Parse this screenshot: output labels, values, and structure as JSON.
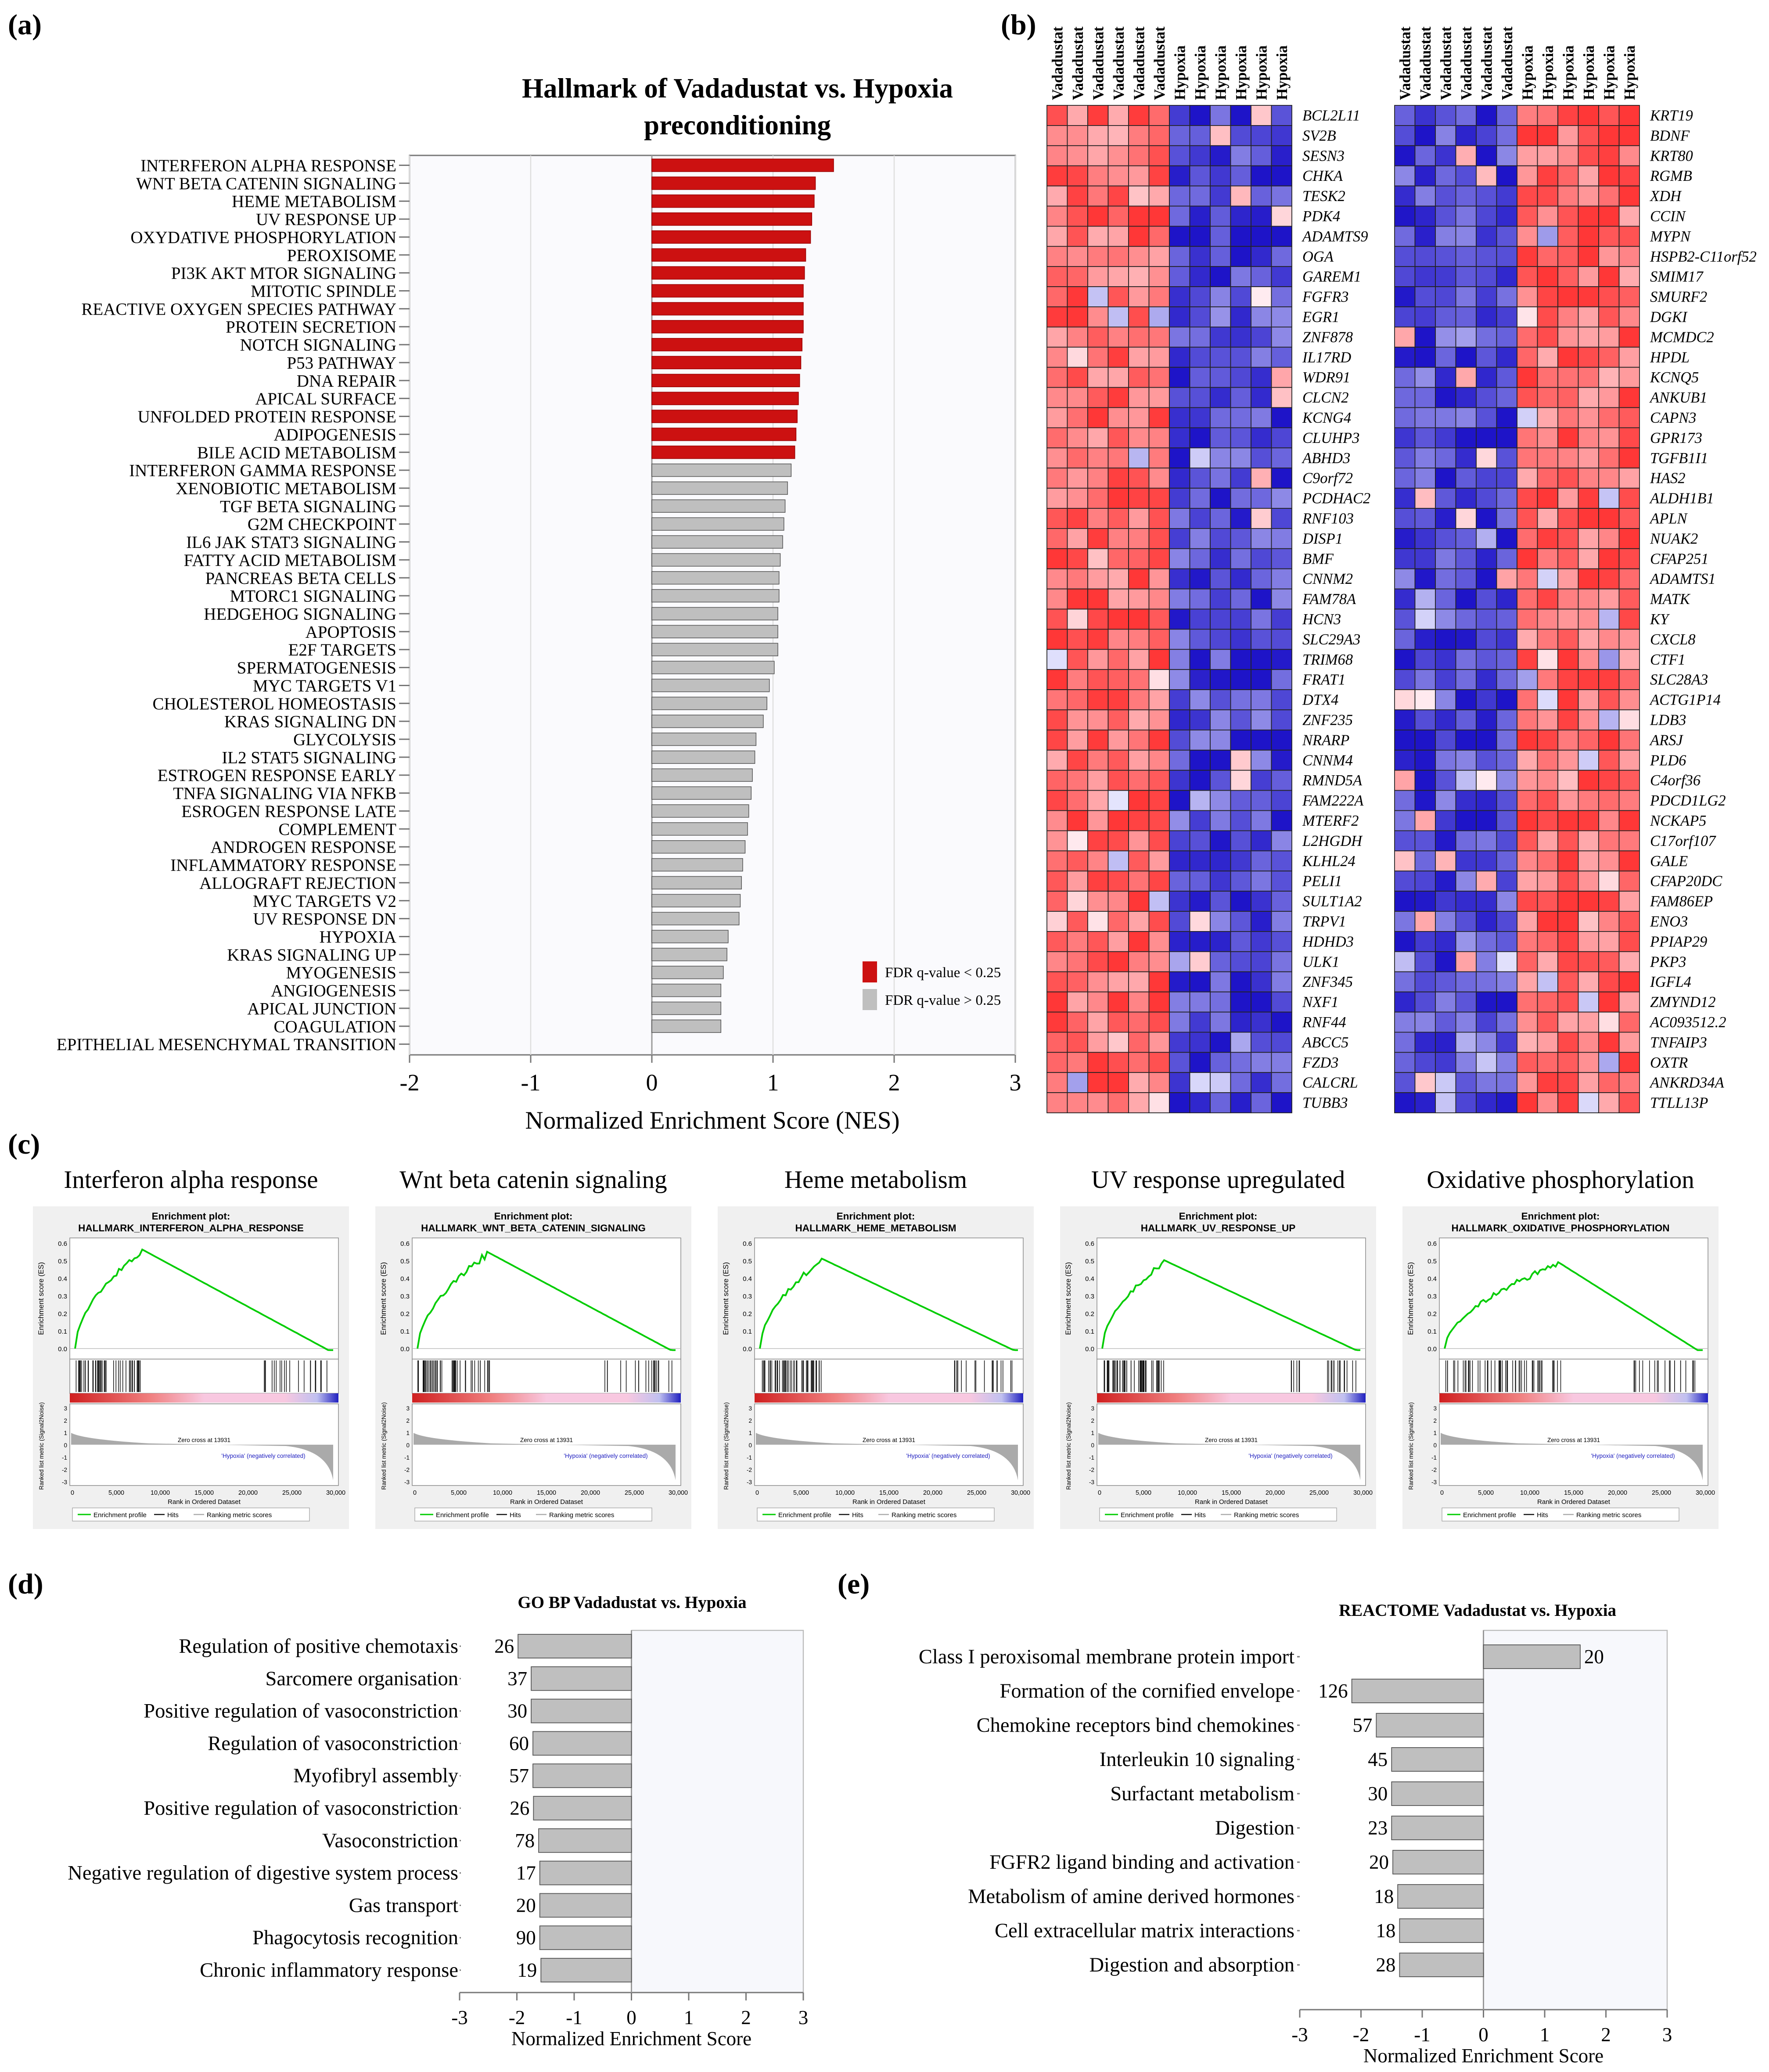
{
  "panel_labels": {
    "a": "(a)",
    "b": "(b)",
    "c": "(c)",
    "d": "(d)",
    "e": "(e)"
  },
  "colors": {
    "red": "#cc1111",
    "gray": "#bfbfbf",
    "bar_stroke": "#555555",
    "axis": "#777777",
    "grid": "#dddddd",
    "plot_bg": "#f7f8fc",
    "green": "#00cc00",
    "heat_red": "#ff3333",
    "heat_blue": "#1f1fd0"
  },
  "chart_data": [
    {
      "id": "hallmark",
      "type": "bar",
      "orientation": "horizontal",
      "title": "Hallmark of Vadadustat vs. Hypoxia preconditioning",
      "title_line1": "Hallmark of Vadadustat vs. Hypoxia",
      "title_line2": "preconditioning",
      "xlabel": "Normalized Enrichment Score (NES)",
      "xlim": [
        -2,
        3
      ],
      "xticks": [
        "-2",
        "-1",
        "0",
        "1",
        "2",
        "3"
      ],
      "legend": [
        {
          "label": "FDR q-value < 0.25",
          "color": "red"
        },
        {
          "label": "FDR q-value > 0.25",
          "color": "gray"
        }
      ],
      "legend_position": "bottom-right",
      "categories": [
        "INTERFERON ALPHA RESPONSE",
        "WNT BETA CATENIN SIGNALING",
        "HEME METABOLISM",
        "UV RESPONSE UP",
        "OXYDATIVE PHOSPHORYLATION",
        "PEROXISOME",
        "PI3K AKT MTOR SIGNALING",
        "MITOTIC SPINDLE",
        "REACTIVE OXYGEN SPECIES PATHWAY",
        "PROTEIN SECRETION",
        "NOTCH SIGNALING",
        "P53 PATHWAY",
        "DNA REPAIR",
        "APICAL SURFACE",
        "UNFOLDED PROTEIN RESPONSE",
        "ADIPOGENESIS",
        "BILE ACID METABOLISM",
        "INTERFERON GAMMA RESPONSE",
        "XENOBIOTIC METABOLISM",
        "TGF BETA SIGNALING",
        "G2M CHECKPOINT",
        "IL6 JAK STAT3 SIGNALING",
        "FATTY ACID METABOLISM",
        "PANCREAS BETA CELLS",
        "MTORC1 SIGNALING",
        "HEDGEHOG SIGNALING",
        "APOPTOSIS",
        "E2F TARGETS",
        "SPERMATOGENESIS",
        "MYC TARGETS V1",
        "CHOLESTEROL HOMEOSTASIS",
        "KRAS SIGNALING DN",
        "GLYCOLYSIS",
        "IL2 STAT5 SIGNALING",
        "ESTROGEN RESPONSE EARLY",
        "TNFA SIGNALING VIA NFKB",
        "ESROGEN RESPONSE LATE",
        "COMPLEMENT",
        "ANDROGEN RESPONSE",
        "INFLAMMATORY RESPONSE",
        "ALLOGRAFT REJECTION",
        "MYC TARGETS V2",
        "UV RESPONSE DN",
        "HYPOXIA",
        "KRAS SIGNALING UP",
        "MYOGENESIS",
        "ANGIOGENESIS",
        "APICAL JUNCTION",
        "COAGULATION",
        "EPITHELIAL MESENCHYMAL TRANSITION"
      ],
      "values": [
        1.5,
        1.35,
        1.34,
        1.32,
        1.31,
        1.27,
        1.26,
        1.25,
        1.25,
        1.25,
        1.24,
        1.23,
        1.22,
        1.21,
        1.2,
        1.19,
        1.18,
        1.15,
        1.12,
        1.1,
        1.09,
        1.08,
        1.06,
        1.05,
        1.05,
        1.04,
        1.04,
        1.04,
        1.01,
        0.97,
        0.95,
        0.92,
        0.86,
        0.85,
        0.83,
        0.82,
        0.8,
        0.79,
        0.77,
        0.75,
        0.74,
        0.73,
        0.72,
        0.63,
        0.62,
        0.59,
        0.57,
        0.57,
        0.57,
        null
      ],
      "significant_count": 17
    },
    {
      "id": "gobp",
      "type": "bar",
      "orientation": "horizontal",
      "title": "GO BP Vadadustat vs. Hypoxia",
      "xlabel": "Normalized Enrichment Score",
      "xlim": [
        -3,
        3
      ],
      "xticks": [
        "-3",
        "-2",
        "-1",
        "0",
        "1",
        "2",
        "3"
      ],
      "categories": [
        "Regulation of positive chemotaxis",
        "Sarcomere organisation",
        "Positive regulation of vasoconstriction",
        "Regulation of vasoconstriction",
        "Myofibryl assembly",
        "Positive regulation of vasoconstriction",
        "Vasoconstriction",
        "Negative regulation of digestive system process",
        "Gas transport",
        "Phagocytosis recognition",
        "Chronic inflammatory response"
      ],
      "values": [
        -1.98,
        -1.75,
        -1.75,
        -1.72,
        -1.72,
        -1.71,
        -1.62,
        -1.6,
        -1.6,
        -1.6,
        -1.58
      ],
      "sizes": [
        "26",
        "37",
        "30",
        "60",
        "57",
        "26",
        "78",
        "17",
        "20",
        "90",
        "19"
      ]
    },
    {
      "id": "reactome",
      "type": "bar",
      "orientation": "horizontal",
      "title": "REACTOME Vadadustat vs. Hypoxia",
      "xlabel": "Normalized Enrichment Score",
      "xlim": [
        -3,
        3
      ],
      "xticks": [
        "-3",
        "-2",
        "-1",
        "0",
        "1",
        "2",
        "3"
      ],
      "categories": [
        "Class I peroxisomal membrane protein import",
        "Formation of the cornified envelope",
        "Chemokine receptors bind chemokines",
        "Interleukin 10 signaling",
        "Surfactant metabolism",
        "Digestion",
        "FGFR2 ligand binding and activation",
        "Metabolism of amine derived hormones",
        "Cell extracellular matrix interactions",
        "Digestion and absorption"
      ],
      "values": [
        1.58,
        -2.15,
        -1.75,
        -1.5,
        -1.5,
        -1.5,
        -1.48,
        -1.4,
        -1.37,
        -1.37
      ],
      "sizes": [
        "20",
        "126",
        "57",
        "45",
        "30",
        "23",
        "20",
        "18",
        "18",
        "28"
      ]
    }
  ],
  "heatmap": {
    "column_headers": [
      "Vadadustat",
      "Vadadustat",
      "Vadadustat",
      "Vadadustat",
      "Vadadustat",
      "Vadadustat",
      "Hypoxia",
      "Hypoxia",
      "Hypoxia",
      "Hypoxia",
      "Hypoxia",
      "Hypoxia"
    ],
    "left_genes": [
      "BCL2L11",
      "SV2B",
      "SESN3",
      "CHKA",
      "TESK2",
      "PDK4",
      "ADAMTS9",
      "OGA",
      "GAREM1",
      "FGFR3",
      "EGR1",
      "ZNF878",
      "IL17RD",
      "WDR91",
      "CLCN2",
      "KCNG4",
      "CLUHP3",
      "ABHD3",
      "C9orf72",
      "PCDHAC2",
      "RNF103",
      "DISP1",
      "BMF",
      "CNNM2",
      "FAM78A",
      "HCN3",
      "SLC29A3",
      "TRIM68",
      "FRAT1",
      "DTX4",
      "ZNF235",
      "NRARP",
      "CNNM4",
      "RMND5A",
      "FAM222A",
      "MTERF2",
      "L2HGDH",
      "KLHL24",
      "PELI1",
      "SULT1A2",
      "TRPV1",
      "HDHD3",
      "ULK1",
      "ZNF345",
      "NXF1",
      "RNF44",
      "ABCC5",
      "FZD3",
      "CALCRL",
      "TUBB3"
    ],
    "right_genes": [
      "KRT19",
      "BDNF",
      "KRT80",
      "RGMB",
      "XDH",
      "CCIN",
      "MYPN",
      "HSPB2-C11orf52",
      "SMIM17",
      "SMURF2",
      "DGKI",
      "MCMDC2",
      "HPDL",
      "KCNQ5",
      "ANKUB1",
      "CAPN3",
      "GPR173",
      "TGFB1I1",
      "HAS2",
      "ALDH1B1",
      "APLN",
      "NUAK2",
      "CFAP251",
      "ADAMTS1",
      "MATK",
      "KY",
      "CXCL8",
      "CTF1",
      "SLC28A3",
      "ACTG1P14",
      "LDB3",
      "ARSJ",
      "PLD6",
      "C4orf36",
      "PDCD1LG2",
      "NCKAP5",
      "C17orf107",
      "GALE",
      "CFAP20DC",
      "FAM86EP",
      "ENO3",
      "PPIAP29",
      "PKP3",
      "IGFL4",
      "ZMYND12",
      "AC093512.2",
      "TNFAIP3",
      "OXTR",
      "ANKRD34A",
      "TTLL13P"
    ]
  },
  "gsea": {
    "headings": [
      "Interferon alpha response",
      "Wnt beta catenin signaling",
      "Heme metabolism",
      "UV response upregulated",
      "Oxidative phosphorylation"
    ],
    "plot_titles": [
      "HALLMARK_INTERFERON_ALPHA_RESPONSE",
      "HALLMARK_WNT_BETA_CATENIN_SIGNALING",
      "HALLMARK_HEME_METABOLISM",
      "HALLMARK_UV_RESPONSE_UP",
      "HALLMARK_OXIDATIVE_PHOSPHORYLATION"
    ],
    "plot_title_prefix": "Enrichment plot:",
    "es_axis_label": "Enrichment score (ES)",
    "metric_axis_label": "Ranked list metric (Signal2Noise)",
    "x_axis_label": "Rank in Ordered Dataset",
    "pos_label": "'Vadadustat' (positively correlated)",
    "neg_label": "'Hypoxia' (negatively correlated)",
    "zero_cross": "Zero cross at 13931",
    "legend": [
      "Enrichment profile",
      "Hits",
      "Ranking metric scores"
    ],
    "x_ticks": [
      "0",
      "5,000",
      "10,000",
      "15,000",
      "20,000",
      "25,000",
      "30,000"
    ],
    "metric_ticks": [
      "3",
      "2",
      "1",
      "0",
      "-1",
      "-2",
      "-3"
    ],
    "es_ticks": [
      "0.6",
      "0.5",
      "0.4",
      "0.3",
      "0.2",
      "0.1",
      "0.0"
    ],
    "max_es": [
      0.62,
      0.6,
      0.56,
      0.55,
      0.54
    ],
    "peak_rank": [
      7500,
      8000,
      7000,
      7000,
      13000
    ]
  }
}
